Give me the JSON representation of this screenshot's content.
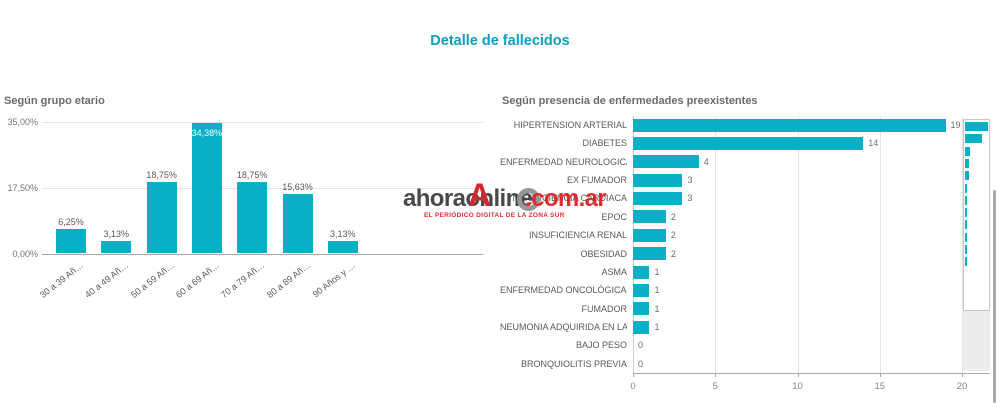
{
  "page": {
    "title": "Detalle de fallecidos"
  },
  "watermark": {
    "brand": "ahoraonline",
    "overlay_letter": "A",
    "suffix": ".com.ar",
    "tagline": "EL PERIÓDICO DIGITAL DE LA ZONA SUR"
  },
  "colors": {
    "bar_teal": "#0aaec6",
    "title_teal": "#0b9fc0",
    "watermark_red": "#e31c23",
    "watermark_grey": "#3c3c3c",
    "grid_grey": "#e5e5e5",
    "axis_grey": "#a9a9a9",
    "label_grey": "#595959",
    "chart_title_grey": "#6b6b6b"
  },
  "chart_data": [
    {
      "id": "age-groups",
      "type": "bar",
      "title": "Según grupo etario",
      "categories": [
        "30 a 39 Añ…",
        "40 a 49 Añ…",
        "50 a 59 Añ…",
        "60 a 69 Añ…",
        "70 a 79 Añ…",
        "80 a 89 Añ…",
        "90 Años y …"
      ],
      "values": [
        6.25,
        3.13,
        18.75,
        34.38,
        18.75,
        15.63,
        3.13
      ],
      "value_labels": [
        "6,25%",
        "3,13%",
        "18,75%",
        "34,38%",
        "18,75%",
        "15,63%",
        "3,13%"
      ],
      "xlabel": "",
      "ylabel": "",
      "ylim": [
        0,
        35
      ],
      "y_ticks": [
        {
          "value": 0,
          "label": "0,00%"
        },
        {
          "value": 17.5,
          "label": "17,50%"
        },
        {
          "value": 35,
          "label": "35,00%"
        }
      ],
      "grid": true,
      "legend": "none"
    },
    {
      "id": "preexisting-conditions",
      "type": "bar",
      "orientation": "horizontal",
      "title": "Según presencia de enfermedades preexistentes",
      "categories": [
        "HIPERTENSION ARTERIAL",
        "DIABETES",
        "ENFERMEDAD NEUROLOGICA P…",
        "EX FUMADOR",
        "INSUFICIENCIA CARDIACA",
        "EPOC",
        "INSUFICIENCIA RENAL",
        "OBESIDAD",
        "ASMA",
        "ENFERMEDAD ONCOLÓGICA PR…",
        "FUMADOR",
        "NEUMONIA ADQUIRIDA EN LA C…",
        "BAJO PESO",
        "BRONQUIOLITIS PREVIA"
      ],
      "values": [
        19,
        14,
        4,
        3,
        3,
        2,
        2,
        2,
        1,
        1,
        1,
        1,
        0,
        0
      ],
      "xlabel": "",
      "ylabel": "",
      "xlim": [
        0,
        20
      ],
      "x_ticks": [
        0,
        5,
        10,
        15,
        20
      ],
      "grid": true,
      "legend": "none",
      "has_minimap": true
    }
  ]
}
